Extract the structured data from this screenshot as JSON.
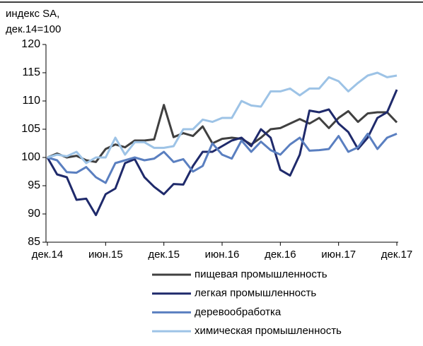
{
  "chart_data": {
    "type": "line",
    "ylabel": [
      "индекс SA,",
      "дек.14=100"
    ],
    "categories": [
      "дек.14",
      null,
      null,
      null,
      null,
      null,
      "июн.15",
      null,
      null,
      null,
      null,
      null,
      "дек.15",
      null,
      null,
      null,
      null,
      null,
      "июн.16",
      null,
      null,
      null,
      null,
      null,
      "дек.16",
      null,
      null,
      null,
      null,
      null,
      "июн.17",
      null,
      null,
      null,
      null,
      null,
      "дек.17"
    ],
    "series": [
      {
        "name": "пищевая промышленность",
        "color": "#404040",
        "values": [
          100,
          100.7,
          100,
          100.3,
          99.5,
          99.2,
          101.5,
          102.3,
          101.8,
          103,
          103,
          103.2,
          109.3,
          103.6,
          104.3,
          103.8,
          105.5,
          102.5,
          103.3,
          103.5,
          103.3,
          102.3,
          103.5,
          105,
          105.2,
          106,
          106.8,
          106,
          107,
          105.2,
          107,
          108.2,
          106.3,
          107.8,
          108,
          108,
          106.2
        ]
      },
      {
        "name": "легкая промышленность",
        "color": "#1f2a6b",
        "values": [
          100,
          97,
          96.5,
          92.5,
          92.7,
          89.8,
          93.5,
          94.5,
          99,
          99.7,
          96.5,
          94.8,
          93.5,
          95.3,
          95.2,
          98.5,
          101,
          101,
          102,
          103,
          103.5,
          102,
          105,
          103.5,
          97.8,
          96.8,
          100.5,
          108.3,
          108,
          108.5,
          106,
          104.5,
          101.5,
          103.5,
          107,
          108,
          112
        ]
      },
      {
        "name": "деревообработка",
        "color": "#5a7fc0",
        "values": [
          100,
          99.5,
          97.4,
          97.3,
          98.3,
          96.5,
          95.5,
          99,
          99.5,
          100,
          99.5,
          99.8,
          101,
          99.2,
          99.7,
          97.5,
          98.5,
          102.5,
          100.5,
          99.8,
          103,
          101,
          102.8,
          101.3,
          100.5,
          102.3,
          103.5,
          101.2,
          101.3,
          101.5,
          103.8,
          101,
          101.8,
          104.2,
          101.5,
          103.5,
          104.2
        ]
      },
      {
        "name": "химическая промышленность",
        "color": "#9dc3e6",
        "values": [
          100,
          100.5,
          100.2,
          101,
          99,
          100,
          100,
          103.5,
          100.5,
          102.7,
          102.7,
          101.7,
          101.7,
          102,
          105,
          105,
          106.7,
          106.3,
          107,
          107,
          110,
          109.2,
          109,
          111.7,
          111.7,
          112.2,
          111,
          112.2,
          112.2,
          114.2,
          113.5,
          111.7,
          113.2,
          114.5,
          115,
          114.2,
          114.5
        ]
      }
    ],
    "ylim": [
      85,
      120
    ],
    "yticks": [
      85,
      90,
      95,
      100,
      105,
      110,
      115,
      120
    ],
    "grid": false,
    "legend": "bottom"
  }
}
